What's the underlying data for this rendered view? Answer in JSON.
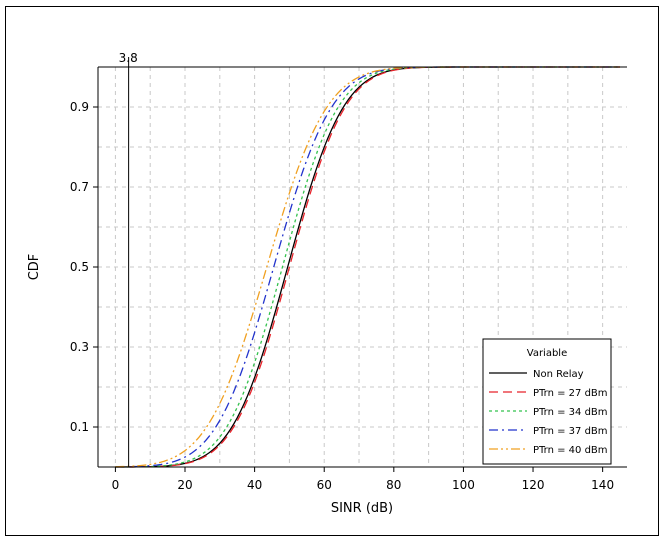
{
  "chart_data": {
    "type": "line",
    "xlabel": "SINR (dB)",
    "ylabel": "CDF",
    "xlim": [
      -5,
      147
    ],
    "ylim": [
      0,
      1.0
    ],
    "xticks": [
      "0",
      "20",
      "40",
      "60",
      "80",
      "100",
      "120",
      "140"
    ],
    "xtick_values": [
      0,
      20,
      40,
      60,
      80,
      100,
      120,
      140
    ],
    "yticks": [
      "0.1",
      "0.3",
      "0.5",
      "0.7",
      "0.9"
    ],
    "ytick_values": [
      0.1,
      0.3,
      0.5,
      0.7,
      0.9
    ],
    "grid": true,
    "reference_line": {
      "x": 3.8,
      "label": "3.8"
    },
    "legend": {
      "title": "Variable",
      "placement": "bottom-right"
    },
    "series": [
      {
        "name": "Non Relay",
        "color": "#000000",
        "dash": "solid",
        "mean": 49.5,
        "sd": 12.5
      },
      {
        "name": "PTrn = 27 dBm",
        "color": "#e8232a",
        "dash": "dashed",
        "mean": 50.0,
        "sd": 12.5
      },
      {
        "name": "PTrn = 34 dBm",
        "color": "#33c24d",
        "dash": "dotted",
        "mean": 48.0,
        "sd": 12.5
      },
      {
        "name": "PTrn = 37 dBm",
        "color": "#2233cc",
        "dash": "dashdot",
        "mean": 45.5,
        "sd": 13.0
      },
      {
        "name": "PTrn = 40 dBm",
        "color": "#f0a020",
        "dash": "dashdotdot",
        "mean": 43.5,
        "sd": 13.5
      }
    ]
  }
}
